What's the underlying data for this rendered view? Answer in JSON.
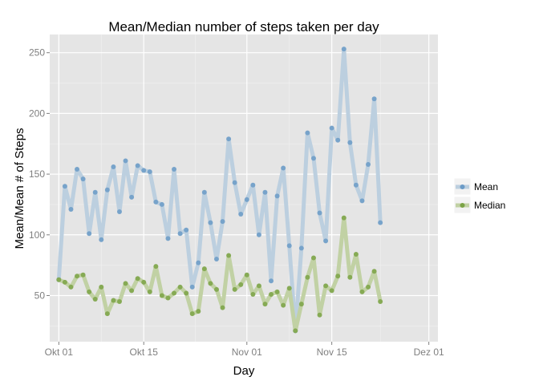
{
  "chart_data": {
    "type": "line",
    "title": "Mean/Median number of steps taken per day",
    "xlabel": "Day",
    "ylabel": "Mean/Mean # of Steps",
    "x_ticks": [
      {
        "label": "Okt 01",
        "day": 0
      },
      {
        "label": "Okt 15",
        "day": 14
      },
      {
        "label": "Nov 01",
        "day": 31
      },
      {
        "label": "Nov 15",
        "day": 45
      },
      {
        "label": "Dez 01",
        "day": 61
      }
    ],
    "y_ticks": [
      50,
      100,
      150,
      200,
      250
    ],
    "xlim": [
      -1.5,
      62.5
    ],
    "ylim": [
      12,
      265
    ],
    "grid": true,
    "legend_position": "right",
    "series": [
      {
        "name": "Mean",
        "color": "#6b9bc7",
        "line_color": "#bccfdf",
        "x": [
          0,
          1,
          2,
          3,
          4,
          5,
          6,
          7,
          8,
          9,
          10,
          11,
          12,
          13,
          14,
          15,
          16,
          17,
          18,
          19,
          20,
          21,
          22,
          23,
          24,
          25,
          26,
          27,
          28,
          29,
          30,
          31,
          32,
          33,
          34,
          35,
          36,
          37,
          38,
          39,
          40,
          41,
          42,
          43,
          44,
          45,
          46,
          47,
          48,
          49,
          50,
          51,
          52,
          53,
          54,
          55,
          56,
          57,
          58,
          59
        ],
        "values": [
          63,
          140,
          121,
          154,
          146,
          101,
          135,
          96,
          137,
          156,
          119,
          161,
          131,
          157,
          153,
          152,
          127,
          125,
          97,
          154,
          101,
          104,
          57,
          77,
          135,
          110,
          80,
          111,
          179,
          143,
          117,
          129,
          141,
          100,
          135,
          62,
          132,
          155,
          91,
          21,
          89,
          184,
          163,
          118,
          95,
          188,
          178,
          253,
          176,
          141,
          128,
          158,
          212,
          110,
          null,
          null,
          null,
          null,
          null,
          null
        ]
      },
      {
        "name": "Median",
        "color": "#7ba346",
        "line_color": "#c1d1a4",
        "x": [
          0,
          1,
          2,
          3,
          4,
          5,
          6,
          7,
          8,
          9,
          10,
          11,
          12,
          13,
          14,
          15,
          16,
          17,
          18,
          19,
          20,
          21,
          22,
          23,
          24,
          25,
          26,
          27,
          28,
          29,
          30,
          31,
          32,
          33,
          34,
          35,
          36,
          37,
          38,
          39,
          40,
          41,
          42,
          43,
          44,
          45,
          46,
          47,
          48,
          49,
          50,
          51,
          52,
          53,
          54,
          55,
          56,
          57,
          58,
          59
        ],
        "values": [
          63,
          61,
          57,
          66,
          67,
          53,
          47,
          57,
          35,
          46,
          45,
          60,
          54,
          64,
          61,
          53,
          74,
          50,
          48,
          52,
          57,
          52,
          35,
          37,
          72,
          60,
          55,
          40,
          83,
          55,
          59,
          67,
          51,
          58,
          43,
          51,
          53,
          42,
          56,
          21,
          43,
          65,
          81,
          34,
          58,
          54,
          66,
          114,
          65,
          84,
          53,
          57,
          70,
          45,
          null,
          null,
          null,
          null,
          null,
          null
        ]
      }
    ]
  }
}
